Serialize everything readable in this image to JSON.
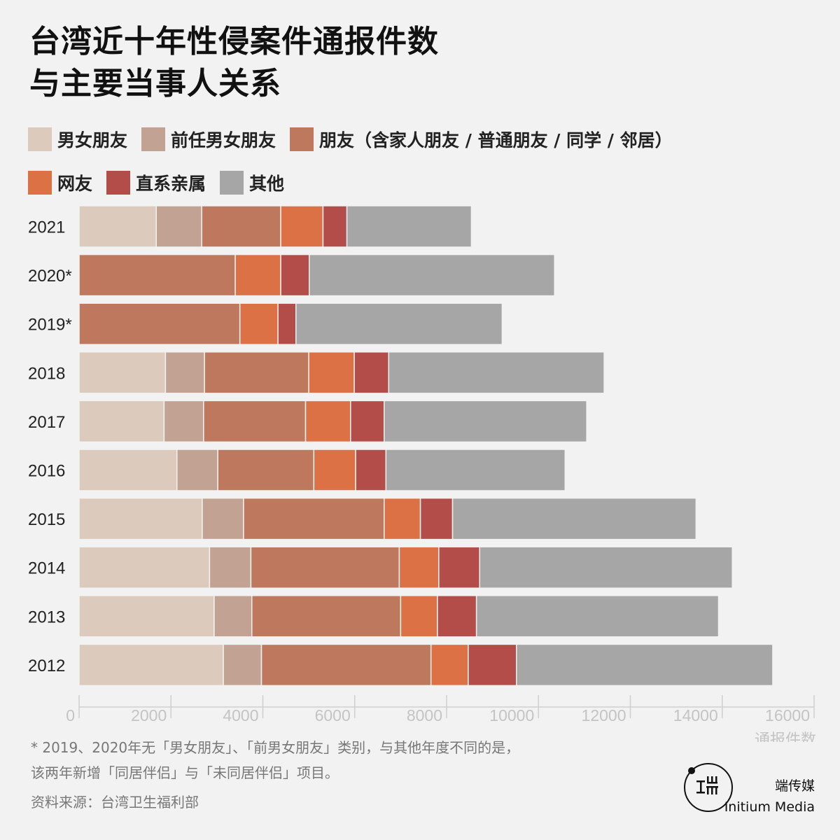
{
  "title": {
    "line1": "台湾近十年性侵案件通报件数",
    "line2": "与主要当事人关系"
  },
  "legend": [
    {
      "label": "男女朋友",
      "color": "#dccbbc"
    },
    {
      "label": "前任男女朋友",
      "color": "#c2a393"
    },
    {
      "label": "朋友（含家人朋友 / 普通朋友 / 同学 / 邻居）",
      "color": "#bd785e"
    },
    {
      "label": "网友",
      "color": "#dd7146"
    },
    {
      "label": "直系亲属",
      "color": "#b34d4a"
    },
    {
      "label": "其他",
      "color": "#a6a6a6"
    }
  ],
  "chart_data": {
    "type": "bar",
    "orientation": "horizontal",
    "stacked": true,
    "categories": [
      "2021",
      "2020*",
      "2019*",
      "2018",
      "2017",
      "2016",
      "2015",
      "2014",
      "2013",
      "2012"
    ],
    "series": [
      {
        "name": "男女朋友",
        "color": "#dccbbc",
        "values": [
          1680,
          0,
          0,
          1880,
          1850,
          2130,
          2680,
          2840,
          2940,
          3140
        ]
      },
      {
        "name": "前任男女朋友",
        "color": "#c2a393",
        "values": [
          990,
          0,
          0,
          850,
          860,
          890,
          900,
          900,
          820,
          830
        ]
      },
      {
        "name": "朋友（含家人朋友 / 普通朋友 / 同学 / 邻居）",
        "color": "#bd785e",
        "values": [
          1720,
          3400,
          3500,
          2270,
          2220,
          2090,
          3060,
          3230,
          3240,
          3690
        ]
      },
      {
        "name": "网友",
        "color": "#dd7146",
        "values": [
          920,
          990,
          830,
          990,
          980,
          910,
          790,
          860,
          800,
          810
        ]
      },
      {
        "name": "直系亲属",
        "color": "#b34d4a",
        "values": [
          520,
          620,
          390,
          750,
          730,
          660,
          700,
          890,
          850,
          1050
        ]
      },
      {
        "name": "其他",
        "color": "#a6a6a6",
        "values": [
          2710,
          5340,
          4490,
          4690,
          4410,
          3900,
          5300,
          5500,
          5270,
          5580
        ]
      }
    ],
    "xlim": [
      0,
      16000
    ],
    "xticks": [
      0,
      2000,
      4000,
      6000,
      8000,
      10000,
      12000,
      14000,
      16000
    ],
    "xlabel": "通报件数"
  },
  "footnote": {
    "line1": "*  2019、2020年无「男女朋友」、「前男女朋友」类别，与其他年度不同的是，",
    "line2": "该两年新增「同居伴侣」与「未同居伴侣」项目。"
  },
  "source": "资料来源：台湾卫生福利部",
  "brand": {
    "name_cn": "端传媒",
    "name_en": "Initium Media"
  }
}
